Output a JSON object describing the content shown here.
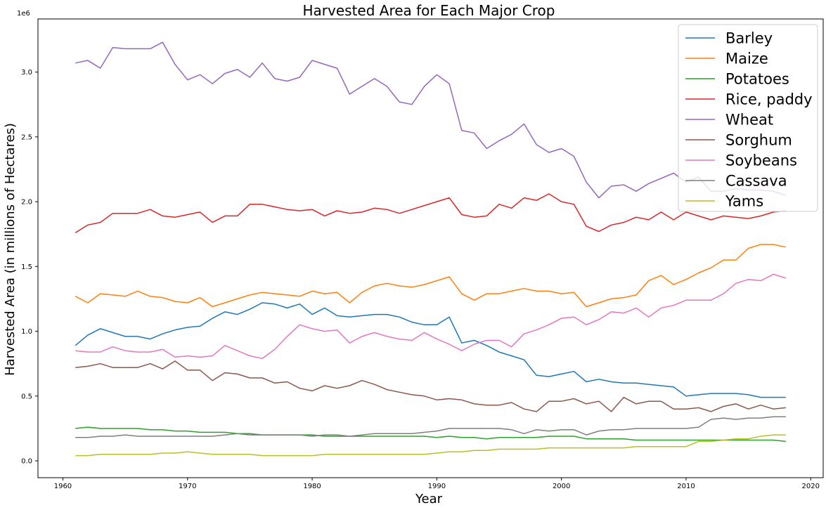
{
  "chart_data": {
    "type": "line",
    "title": "Harvested Area for Each Major Crop",
    "xlabel": "Year",
    "ylabel": "Harvested Area (in millions of Hectares)",
    "y_offset_label": "1e6",
    "xlim": [
      1958,
      2021
    ],
    "ylim": [
      -0.13,
      3.41
    ],
    "x_ticks": [
      1960,
      1970,
      1980,
      1990,
      2000,
      2010,
      2020
    ],
    "x_tick_labels": [
      "1960",
      "1970",
      "1980",
      "1990",
      "2000",
      "2010",
      "2020"
    ],
    "y_ticks": [
      0.0,
      0.5,
      1.0,
      1.5,
      2.0,
      2.5,
      3.0
    ],
    "y_tick_labels": [
      "0.0",
      "0.5",
      "1.0",
      "1.5",
      "2.0",
      "2.5",
      "3.0"
    ],
    "legend_position": "top-right",
    "grid": false,
    "x": [
      1961,
      1962,
      1963,
      1964,
      1965,
      1966,
      1967,
      1968,
      1969,
      1970,
      1971,
      1972,
      1973,
      1974,
      1975,
      1976,
      1977,
      1978,
      1979,
      1980,
      1981,
      1982,
      1983,
      1984,
      1985,
      1986,
      1987,
      1988,
      1989,
      1990,
      1991,
      1992,
      1993,
      1994,
      1995,
      1996,
      1997,
      1998,
      1999,
      2000,
      2001,
      2002,
      2003,
      2004,
      2005,
      2006,
      2007,
      2008,
      2009,
      2010,
      2011,
      2012,
      2013,
      2014,
      2015,
      2016,
      2017,
      2018
    ],
    "series": [
      {
        "name": "Barley",
        "color": "#1f77b4",
        "values": [
          0.89,
          0.97,
          1.02,
          0.99,
          0.96,
          0.96,
          0.94,
          0.98,
          1.01,
          1.03,
          1.04,
          1.1,
          1.15,
          1.13,
          1.17,
          1.22,
          1.21,
          1.18,
          1.21,
          1.13,
          1.18,
          1.12,
          1.11,
          1.12,
          1.13,
          1.13,
          1.11,
          1.07,
          1.05,
          1.05,
          1.11,
          0.91,
          0.93,
          0.89,
          0.84,
          0.81,
          0.78,
          0.66,
          0.65,
          0.67,
          0.69,
          0.61,
          0.63,
          0.61,
          0.6,
          0.6,
          0.59,
          0.58,
          0.57,
          0.5,
          0.51,
          0.52,
          0.52,
          0.52,
          0.51,
          0.49,
          0.49,
          0.49
        ]
      },
      {
        "name": "Maize",
        "color": "#ff7f0e",
        "values": [
          1.27,
          1.22,
          1.29,
          1.28,
          1.27,
          1.31,
          1.27,
          1.26,
          1.23,
          1.22,
          1.26,
          1.19,
          1.22,
          1.25,
          1.28,
          1.3,
          1.29,
          1.28,
          1.27,
          1.31,
          1.29,
          1.3,
          1.22,
          1.3,
          1.35,
          1.37,
          1.35,
          1.34,
          1.36,
          1.39,
          1.42,
          1.29,
          1.24,
          1.29,
          1.29,
          1.31,
          1.33,
          1.31,
          1.31,
          1.29,
          1.3,
          1.19,
          1.22,
          1.25,
          1.26,
          1.28,
          1.39,
          1.43,
          1.36,
          1.4,
          1.45,
          1.49,
          1.55,
          1.55,
          1.64,
          1.67,
          1.67,
          1.65
        ]
      },
      {
        "name": "Potatoes",
        "color": "#2ca02c",
        "values": [
          0.25,
          0.26,
          0.25,
          0.25,
          0.25,
          0.25,
          0.24,
          0.24,
          0.23,
          0.23,
          0.22,
          0.22,
          0.22,
          0.21,
          0.21,
          0.2,
          0.2,
          0.2,
          0.2,
          0.2,
          0.19,
          0.19,
          0.19,
          0.19,
          0.19,
          0.19,
          0.19,
          0.19,
          0.19,
          0.18,
          0.19,
          0.18,
          0.18,
          0.17,
          0.18,
          0.18,
          0.18,
          0.18,
          0.19,
          0.19,
          0.19,
          0.17,
          0.17,
          0.17,
          0.17,
          0.16,
          0.16,
          0.16,
          0.16,
          0.16,
          0.16,
          0.16,
          0.16,
          0.16,
          0.16,
          0.16,
          0.16,
          0.15
        ]
      },
      {
        "name": "Rice, paddy",
        "color": "#d62728",
        "values": [
          1.76,
          1.82,
          1.84,
          1.91,
          1.91,
          1.91,
          1.94,
          1.89,
          1.88,
          1.9,
          1.92,
          1.84,
          1.89,
          1.89,
          1.98,
          1.98,
          1.96,
          1.94,
          1.93,
          1.94,
          1.89,
          1.93,
          1.91,
          1.92,
          1.95,
          1.94,
          1.91,
          1.94,
          1.97,
          2.0,
          2.03,
          1.9,
          1.88,
          1.89,
          1.98,
          1.95,
          2.03,
          2.01,
          2.06,
          2.0,
          1.98,
          1.81,
          1.77,
          1.82,
          1.84,
          1.88,
          1.86,
          1.92,
          1.86,
          1.92,
          1.89,
          1.86,
          1.89,
          1.88,
          1.87,
          1.89,
          1.92,
          1.93
        ]
      },
      {
        "name": "Wheat",
        "color": "#9467bd",
        "values": [
          3.07,
          3.09,
          3.03,
          3.19,
          3.18,
          3.18,
          3.18,
          3.23,
          3.06,
          2.94,
          2.98,
          2.91,
          2.99,
          3.02,
          2.96,
          3.07,
          2.95,
          2.93,
          2.96,
          3.09,
          3.06,
          3.03,
          2.83,
          2.89,
          2.95,
          2.89,
          2.77,
          2.75,
          2.89,
          2.98,
          2.91,
          2.55,
          2.53,
          2.41,
          2.47,
          2.52,
          2.6,
          2.44,
          2.38,
          2.41,
          2.35,
          2.15,
          2.03,
          2.12,
          2.13,
          2.08,
          2.14,
          2.18,
          2.22,
          2.15,
          2.19,
          2.08,
          2.08,
          2.1,
          2.09,
          2.09,
          2.08,
          2.05
        ]
      },
      {
        "name": "Sorghum",
        "color": "#8c564b",
        "values": [
          0.72,
          0.73,
          0.75,
          0.72,
          0.72,
          0.72,
          0.75,
          0.71,
          0.77,
          0.7,
          0.7,
          0.62,
          0.68,
          0.67,
          0.64,
          0.64,
          0.6,
          0.61,
          0.56,
          0.54,
          0.58,
          0.56,
          0.58,
          0.62,
          0.59,
          0.55,
          0.53,
          0.51,
          0.5,
          0.47,
          0.48,
          0.47,
          0.44,
          0.43,
          0.43,
          0.45,
          0.4,
          0.38,
          0.46,
          0.46,
          0.48,
          0.44,
          0.46,
          0.38,
          0.49,
          0.44,
          0.46,
          0.46,
          0.4,
          0.4,
          0.41,
          0.38,
          0.42,
          0.44,
          0.4,
          0.43,
          0.4,
          0.41
        ]
      },
      {
        "name": "Soybeans",
        "color": "#e377c2",
        "values": [
          0.85,
          0.84,
          0.84,
          0.88,
          0.85,
          0.84,
          0.84,
          0.86,
          0.8,
          0.81,
          0.8,
          0.81,
          0.89,
          0.85,
          0.81,
          0.79,
          0.86,
          0.96,
          1.05,
          1.02,
          1.0,
          1.01,
          0.91,
          0.96,
          0.99,
          0.96,
          0.94,
          0.93,
          0.99,
          0.94,
          0.9,
          0.85,
          0.9,
          0.93,
          0.93,
          0.88,
          0.98,
          1.01,
          1.05,
          1.1,
          1.11,
          1.05,
          1.09,
          1.15,
          1.14,
          1.18,
          1.11,
          1.18,
          1.2,
          1.24,
          1.24,
          1.24,
          1.29,
          1.37,
          1.4,
          1.39,
          1.44,
          1.41
        ]
      },
      {
        "name": "Cassava",
        "color": "#7f7f7f",
        "values": [
          0.18,
          0.18,
          0.19,
          0.19,
          0.2,
          0.19,
          0.19,
          0.19,
          0.19,
          0.19,
          0.19,
          0.19,
          0.2,
          0.21,
          0.2,
          0.2,
          0.2,
          0.2,
          0.2,
          0.19,
          0.2,
          0.2,
          0.19,
          0.2,
          0.21,
          0.21,
          0.21,
          0.21,
          0.22,
          0.23,
          0.25,
          0.25,
          0.25,
          0.25,
          0.25,
          0.24,
          0.21,
          0.24,
          0.23,
          0.24,
          0.24,
          0.2,
          0.23,
          0.24,
          0.24,
          0.25,
          0.25,
          0.25,
          0.25,
          0.25,
          0.26,
          0.32,
          0.33,
          0.32,
          0.33,
          0.33,
          0.34,
          0.34
        ]
      },
      {
        "name": "Yams",
        "color": "#bcbd22",
        "values": [
          0.04,
          0.04,
          0.05,
          0.05,
          0.05,
          0.05,
          0.05,
          0.06,
          0.06,
          0.07,
          0.06,
          0.05,
          0.05,
          0.05,
          0.05,
          0.04,
          0.04,
          0.04,
          0.04,
          0.04,
          0.05,
          0.05,
          0.05,
          0.05,
          0.05,
          0.05,
          0.05,
          0.05,
          0.05,
          0.06,
          0.07,
          0.07,
          0.08,
          0.08,
          0.09,
          0.09,
          0.09,
          0.09,
          0.1,
          0.1,
          0.1,
          0.1,
          0.1,
          0.1,
          0.1,
          0.11,
          0.11,
          0.11,
          0.11,
          0.11,
          0.15,
          0.15,
          0.16,
          0.17,
          0.17,
          0.19,
          0.2,
          0.2
        ]
      }
    ]
  }
}
